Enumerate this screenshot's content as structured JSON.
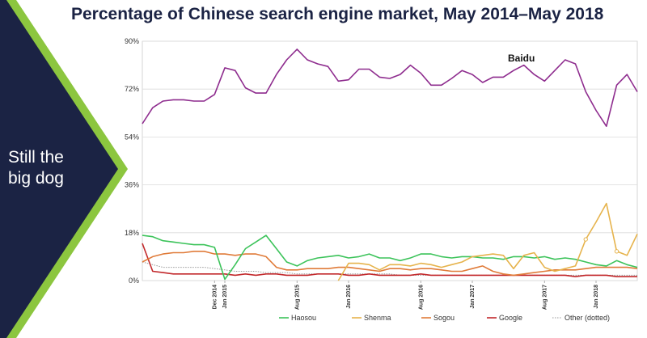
{
  "sidebar": {
    "text_line1": "Still the",
    "text_line2": "big dog",
    "bg_color": "#1b2344",
    "accent_color": "#8cc63f"
  },
  "chart_data": {
    "type": "line",
    "title": "Percentage of Chinese search engine market, May 2014–May 2018",
    "ylim": [
      0,
      90
    ],
    "yticks": [
      "0%",
      "18%",
      "36%",
      "54%",
      "72%",
      "90%"
    ],
    "x_tick_labels": [
      "Dec 2014",
      "Jan 2015",
      "Aug 2015",
      "Jan 2016",
      "Aug 2016",
      "Jan 2017",
      "Aug 2017",
      "Jan 2018"
    ],
    "x_tick_index": [
      7,
      8,
      15,
      20,
      27,
      32,
      39,
      44
    ],
    "n_points": 49,
    "grid": "horizontal",
    "legend_position": "bottom",
    "annotations": [
      {
        "text": "Baidu",
        "series": "Baidu"
      }
    ],
    "series": [
      {
        "name": "Baidu",
        "color": "#8e2c8e",
        "values": [
          59,
          65,
          67.5,
          68,
          68,
          67.5,
          67.5,
          70,
          80,
          79,
          72.5,
          70.5,
          70.5,
          77.5,
          83,
          87,
          83,
          81.5,
          80.5,
          75,
          75.5,
          79.5,
          79.5,
          76.5,
          76,
          77.5,
          81,
          78,
          73.5,
          73.5,
          76,
          79,
          77.5,
          74.5,
          76.5,
          76.5,
          79,
          81,
          77.5,
          75,
          79,
          83,
          81.5,
          71,
          64,
          58,
          73.5,
          77.5,
          71
        ]
      },
      {
        "name": "Haosou",
        "color": "#3cc35a",
        "values": [
          17,
          16.5,
          15,
          14.5,
          14,
          13.5,
          13.5,
          12.5,
          0.5,
          6,
          12,
          14.5,
          17,
          12,
          7,
          5.5,
          7.5,
          8.5,
          9,
          9.5,
          8.5,
          9,
          10,
          8.5,
          8.5,
          7.5,
          8.5,
          10,
          10,
          9,
          8.5,
          9,
          9,
          8.5,
          8.5,
          8,
          9,
          9,
          8.5,
          9,
          8,
          8.5,
          8,
          7,
          6,
          5.5,
          7.5,
          6,
          5
        ]
      },
      {
        "name": "Shenma",
        "color": "#e6b34c",
        "values": [
          null,
          null,
          null,
          null,
          null,
          null,
          null,
          null,
          null,
          null,
          null,
          null,
          null,
          null,
          null,
          null,
          null,
          null,
          null,
          0,
          6.5,
          6.5,
          6,
          4,
          6,
          6,
          5.5,
          6.5,
          6,
          5,
          6,
          7,
          9,
          9.5,
          10,
          9.5,
          4.5,
          9.5,
          10.5,
          5,
          3.5,
          4.5,
          5.5,
          15.5,
          22,
          29,
          11,
          9.5,
          17.5
        ]
      },
      {
        "name": "Sogou",
        "color": "#e07b39",
        "values": [
          7,
          9,
          10,
          10.5,
          10.5,
          11,
          11,
          10,
          10,
          9.5,
          10,
          10,
          9,
          5,
          4,
          4,
          4.5,
          4.5,
          4.5,
          5,
          5,
          4.5,
          4,
          3.5,
          4.5,
          4.5,
          4,
          4.5,
          4.5,
          4,
          3.5,
          3.5,
          4.5,
          5.5,
          3.5,
          2.5,
          2,
          2.5,
          3,
          3.5,
          4,
          4,
          4,
          4.5,
          5,
          5,
          5,
          5,
          4.5
        ]
      },
      {
        "name": "Google",
        "color": "#c2282b",
        "values": [
          14,
          3.5,
          3,
          2.5,
          2.5,
          2.5,
          2.5,
          2.5,
          2.5,
          2,
          2.5,
          2,
          2.5,
          2.5,
          2,
          2,
          2,
          2.5,
          2.5,
          2.5,
          2,
          2,
          2.5,
          2,
          2,
          2,
          2,
          2.5,
          2,
          2,
          2,
          2,
          2,
          2,
          2,
          2,
          2,
          2,
          2,
          2,
          2,
          2,
          1.5,
          2,
          2,
          2,
          1.5,
          1.5,
          1.5
        ]
      },
      {
        "name": "Other (dotted)",
        "color": "#999999",
        "dashed": true,
        "values": [
          7,
          6,
          5,
          5,
          5,
          5,
          5,
          4.5,
          4,
          3.5,
          3.5,
          3.5,
          3,
          3,
          3,
          2.5,
          2.5,
          2.5,
          2.5,
          2.5,
          2.5,
          2.5,
          2.5,
          2.5,
          2.5,
          2,
          2,
          2,
          2,
          2,
          2,
          2,
          2,
          2,
          2,
          2,
          2,
          2,
          2,
          2,
          2,
          2,
          2,
          2,
          2,
          2,
          2,
          2,
          2
        ]
      }
    ]
  }
}
